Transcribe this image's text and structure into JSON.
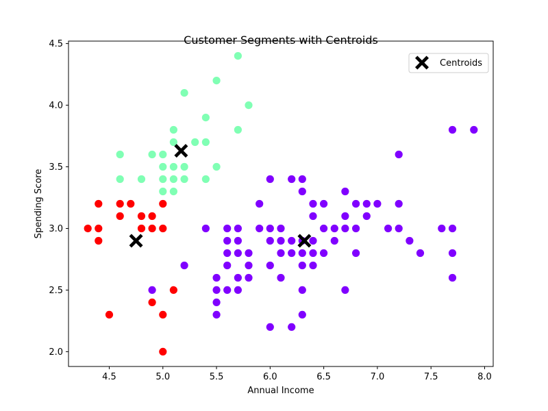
{
  "chart_data": {
    "type": "scatter",
    "title": "Customer Segments with Centroids",
    "xlabel": "Annual Income",
    "ylabel": "Spending Score",
    "xlim": [
      4.12,
      8.08
    ],
    "ylim": [
      1.88,
      4.52
    ],
    "xticks": [
      4.5,
      5.0,
      5.5,
      6.0,
      6.5,
      7.0,
      7.5,
      8.0
    ],
    "xtick_labels": [
      "4.5",
      "5.0",
      "5.5",
      "6.0",
      "6.5",
      "7.0",
      "7.5",
      "8.0"
    ],
    "yticks": [
      2.0,
      2.5,
      3.0,
      3.5,
      4.0,
      4.5
    ],
    "ytick_labels": [
      "2.0",
      "2.5",
      "3.0",
      "3.5",
      "4.0",
      "4.5"
    ],
    "grid": false,
    "legend": {
      "placement": "upper-right",
      "entries": [
        "Centroids"
      ]
    },
    "colors": {
      "cluster_red": "#ff0000",
      "cluster_green": "#80ffb4",
      "cluster_purple": "#8000ff",
      "centroid": "#000000"
    },
    "series": [
      {
        "color": "#ff0000",
        "points": [
          [
            4.3,
            3.0
          ],
          [
            4.4,
            3.2
          ],
          [
            4.4,
            3.0
          ],
          [
            4.4,
            2.9
          ],
          [
            4.5,
            2.3
          ],
          [
            4.6,
            3.2
          ],
          [
            4.6,
            3.1
          ],
          [
            4.7,
            3.2
          ],
          [
            4.8,
            3.1
          ],
          [
            4.8,
            3.0
          ],
          [
            4.9,
            3.1
          ],
          [
            4.9,
            3.0
          ],
          [
            4.9,
            2.4
          ],
          [
            5.0,
            3.2
          ],
          [
            5.0,
            3.0
          ],
          [
            5.0,
            2.3
          ],
          [
            5.0,
            2.0
          ],
          [
            5.1,
            2.5
          ]
        ]
      },
      {
        "color": "#80ffb4",
        "points": [
          [
            4.6,
            3.6
          ],
          [
            4.6,
            3.4
          ],
          [
            4.8,
            3.4
          ],
          [
            4.9,
            3.6
          ],
          [
            5.0,
            3.6
          ],
          [
            5.0,
            3.5
          ],
          [
            5.0,
            3.4
          ],
          [
            5.0,
            3.3
          ],
          [
            5.1,
            3.8
          ],
          [
            5.1,
            3.7
          ],
          [
            5.1,
            3.5
          ],
          [
            5.1,
            3.4
          ],
          [
            5.1,
            3.3
          ],
          [
            5.2,
            4.1
          ],
          [
            5.2,
            3.5
          ],
          [
            5.2,
            3.4
          ],
          [
            5.3,
            3.7
          ],
          [
            5.4,
            3.9
          ],
          [
            5.4,
            3.7
          ],
          [
            5.4,
            3.4
          ],
          [
            5.5,
            4.2
          ],
          [
            5.5,
            3.5
          ],
          [
            5.7,
            4.4
          ],
          [
            5.7,
            3.8
          ],
          [
            5.8,
            4.0
          ]
        ]
      },
      {
        "color": "#8000ff",
        "points": [
          [
            4.9,
            2.5
          ],
          [
            5.2,
            2.7
          ],
          [
            5.4,
            3.0
          ],
          [
            5.5,
            2.6
          ],
          [
            5.5,
            2.5
          ],
          [
            5.5,
            2.4
          ],
          [
            5.5,
            2.3
          ],
          [
            5.6,
            3.0
          ],
          [
            5.6,
            2.9
          ],
          [
            5.6,
            2.8
          ],
          [
            5.6,
            2.7
          ],
          [
            5.6,
            2.5
          ],
          [
            5.7,
            3.0
          ],
          [
            5.7,
            2.9
          ],
          [
            5.7,
            2.8
          ],
          [
            5.7,
            2.6
          ],
          [
            5.7,
            2.5
          ],
          [
            5.8,
            2.8
          ],
          [
            5.8,
            2.7
          ],
          [
            5.8,
            2.6
          ],
          [
            5.9,
            3.2
          ],
          [
            5.9,
            3.0
          ],
          [
            6.0,
            3.4
          ],
          [
            6.0,
            3.0
          ],
          [
            6.0,
            2.9
          ],
          [
            6.0,
            2.7
          ],
          [
            6.0,
            2.2
          ],
          [
            6.1,
            3.0
          ],
          [
            6.1,
            2.9
          ],
          [
            6.1,
            2.8
          ],
          [
            6.1,
            2.6
          ],
          [
            6.2,
            3.4
          ],
          [
            6.2,
            2.9
          ],
          [
            6.2,
            2.8
          ],
          [
            6.2,
            2.2
          ],
          [
            6.3,
            3.4
          ],
          [
            6.3,
            3.3
          ],
          [
            6.3,
            2.9
          ],
          [
            6.3,
            2.8
          ],
          [
            6.3,
            2.7
          ],
          [
            6.3,
            2.5
          ],
          [
            6.3,
            2.3
          ],
          [
            6.4,
            3.2
          ],
          [
            6.4,
            3.1
          ],
          [
            6.4,
            2.9
          ],
          [
            6.4,
            2.8
          ],
          [
            6.4,
            2.7
          ],
          [
            6.5,
            3.2
          ],
          [
            6.5,
            3.0
          ],
          [
            6.5,
            2.8
          ],
          [
            6.6,
            3.0
          ],
          [
            6.6,
            2.9
          ],
          [
            6.7,
            3.3
          ],
          [
            6.7,
            3.1
          ],
          [
            6.7,
            3.0
          ],
          [
            6.7,
            2.5
          ],
          [
            6.8,
            3.2
          ],
          [
            6.8,
            3.0
          ],
          [
            6.8,
            2.8
          ],
          [
            6.9,
            3.2
          ],
          [
            6.9,
            3.1
          ],
          [
            7.0,
            3.2
          ],
          [
            7.1,
            3.0
          ],
          [
            7.2,
            3.6
          ],
          [
            7.2,
            3.2
          ],
          [
            7.2,
            3.0
          ],
          [
            7.3,
            2.9
          ],
          [
            7.4,
            2.8
          ],
          [
            7.6,
            3.0
          ],
          [
            7.7,
            3.8
          ],
          [
            7.7,
            3.0
          ],
          [
            7.7,
            2.8
          ],
          [
            7.7,
            2.6
          ],
          [
            7.9,
            3.8
          ]
        ]
      }
    ],
    "centroids": {
      "name": "Centroids",
      "marker": "X",
      "points": [
        [
          4.75,
          2.9
        ],
        [
          5.17,
          3.63
        ],
        [
          6.32,
          2.9
        ]
      ]
    }
  }
}
